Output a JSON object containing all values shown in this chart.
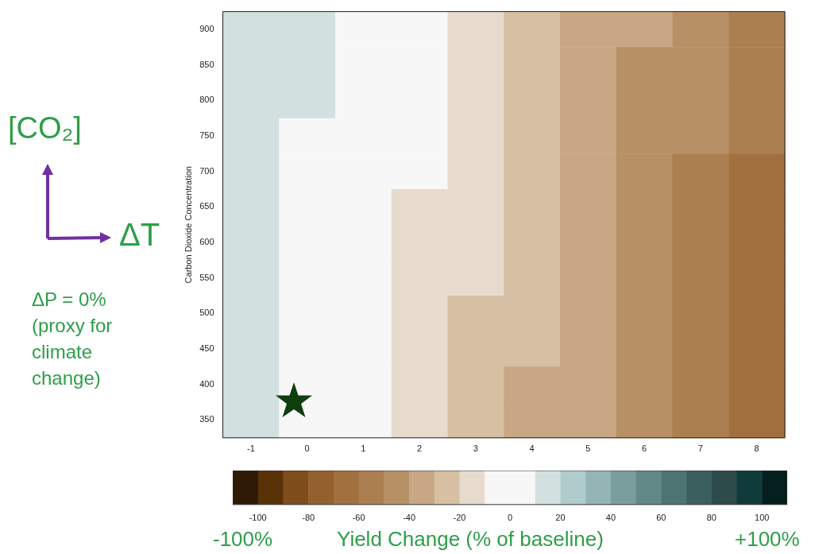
{
  "chart_data": {
    "type": "heatmap",
    "ylabel": "Carbon Dioxide Concentration",
    "clabel": "Yield Change (% of baseline)",
    "categories": [
      "-1",
      "0",
      "1",
      "2",
      "3",
      "4",
      "5",
      "6",
      "7",
      "8"
    ],
    "y_categories": [
      "900",
      "850",
      "800",
      "750",
      "700",
      "650",
      "600",
      "550",
      "500",
      "450",
      "400",
      "350"
    ],
    "cells": [
      [
        15,
        15,
        5,
        -5,
        -15,
        -25,
        -35,
        -35,
        -45,
        -55
      ],
      [
        15,
        15,
        5,
        -5,
        -15,
        -25,
        -35,
        -45,
        -45,
        -55
      ],
      [
        15,
        15,
        5,
        -5,
        -15,
        -25,
        -35,
        -45,
        -45,
        -55
      ],
      [
        15,
        5,
        5,
        -5,
        -15,
        -25,
        -35,
        -45,
        -45,
        -55
      ],
      [
        15,
        5,
        -5,
        -5,
        -15,
        -25,
        -35,
        -45,
        -55,
        -65
      ],
      [
        15,
        5,
        -5,
        -15,
        -15,
        -25,
        -35,
        -45,
        -55,
        -65
      ],
      [
        15,
        5,
        -5,
        -15,
        -15,
        -25,
        -35,
        -45,
        -55,
        -65
      ],
      [
        15,
        5,
        -5,
        -15,
        -15,
        -25,
        -35,
        -45,
        -55,
        -65
      ],
      [
        15,
        5,
        -5,
        -15,
        -25,
        -25,
        -35,
        -45,
        -55,
        -65
      ],
      [
        15,
        5,
        -5,
        -15,
        -25,
        -25,
        -35,
        -45,
        -55,
        -65
      ],
      [
        15,
        5,
        -5,
        -15,
        -25,
        -35,
        -35,
        -45,
        -55,
        -65
      ],
      [
        15,
        -5,
        -5,
        -15,
        -25,
        -35,
        -35,
        -45,
        -55,
        -65
      ]
    ],
    "clim": [
      -110,
      110
    ],
    "cticks": [
      -100,
      -80,
      -60,
      -40,
      -20,
      0,
      20,
      40,
      60,
      80,
      100
    ],
    "colors": [
      "#2e1a05",
      "#5a3208",
      "#7f4d1c",
      "#94602e",
      "#a2703f",
      "#ac7f51",
      "#b89066",
      "#c7a784",
      "#d6bfa3",
      "#e6dbcd",
      "#f7f7f7",
      "#f7f7f7",
      "#d2e0e0",
      "#b0cccc",
      "#93b5b5",
      "#7a9e9e",
      "#628888",
      "#4d7373",
      "#3b5f5f",
      "#2d4b4b",
      "#0f3c3a",
      "#051e1e"
    ],
    "annotations": [
      "[CO₂]",
      "ΔT",
      "ΔP = 0% (proxy for climate change)",
      "-100%",
      "+100%"
    ]
  }
}
